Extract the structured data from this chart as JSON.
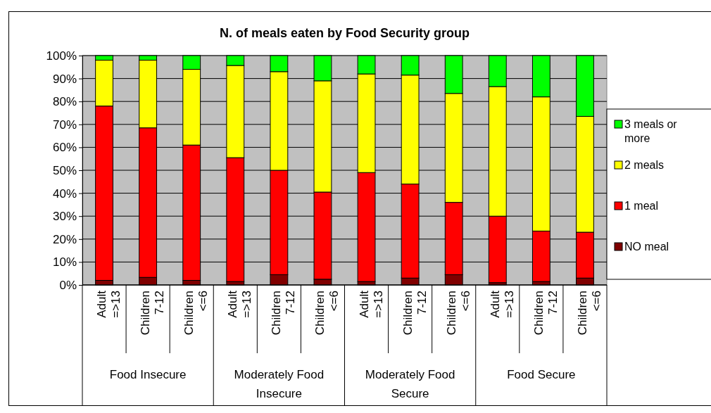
{
  "chart_data": {
    "type": "bar",
    "stacked": true,
    "title": "N. of meals eaten by Food Security group",
    "categories": [
      "Adult =>13",
      "Children 7-12",
      "Children <=6",
      "Adult =>13",
      "Children 7-12",
      "Children <=6",
      "Adult =>13",
      "Children 7-12",
      "Children <=6",
      "Adult =>13",
      "Children 7-12",
      "Children <=6"
    ],
    "annotations": [
      "Food Insecure",
      "Moderately Food Insecure",
      "Moderately Food Secure",
      "Food Secure"
    ],
    "series": [
      {
        "name": "NO meal",
        "color": "#800000",
        "values": [
          2,
          3.3,
          2,
          1.5,
          4.5,
          2.5,
          1.5,
          3,
          4.5,
          1,
          1.5,
          3
        ]
      },
      {
        "name": "1 meal",
        "color": "#ff0000",
        "values": [
          76,
          65.2,
          59,
          54,
          45.5,
          38,
          47.5,
          41,
          31.5,
          29,
          22,
          20
        ]
      },
      {
        "name": "2 meals",
        "color": "#ffff00",
        "values": [
          20,
          29.5,
          33,
          40.2,
          43,
          48.5,
          43,
          47.5,
          47.5,
          56.5,
          58.5,
          50.5
        ]
      },
      {
        "name": "3 meals or more",
        "color": "#00ff00",
        "values": [
          2,
          2,
          6,
          4.3,
          7,
          11,
          8,
          8.5,
          16.5,
          13.5,
          18,
          26.5
        ]
      }
    ],
    "ylim": [
      0,
      100
    ],
    "yticks": [
      {
        "value": 0,
        "label": "0%"
      },
      {
        "value": 10,
        "label": "10%"
      },
      {
        "value": 20,
        "label": "20%"
      },
      {
        "value": 30,
        "label": "30%"
      },
      {
        "value": 40,
        "label": "40%"
      },
      {
        "value": 50,
        "label": "50%"
      },
      {
        "value": 60,
        "label": "60%"
      },
      {
        "value": 70,
        "label": "70%"
      },
      {
        "value": 80,
        "label": "80%"
      },
      {
        "value": 90,
        "label": "90%"
      },
      {
        "value": 100,
        "label": "100%"
      }
    ],
    "grid": "y",
    "legend": "right"
  }
}
